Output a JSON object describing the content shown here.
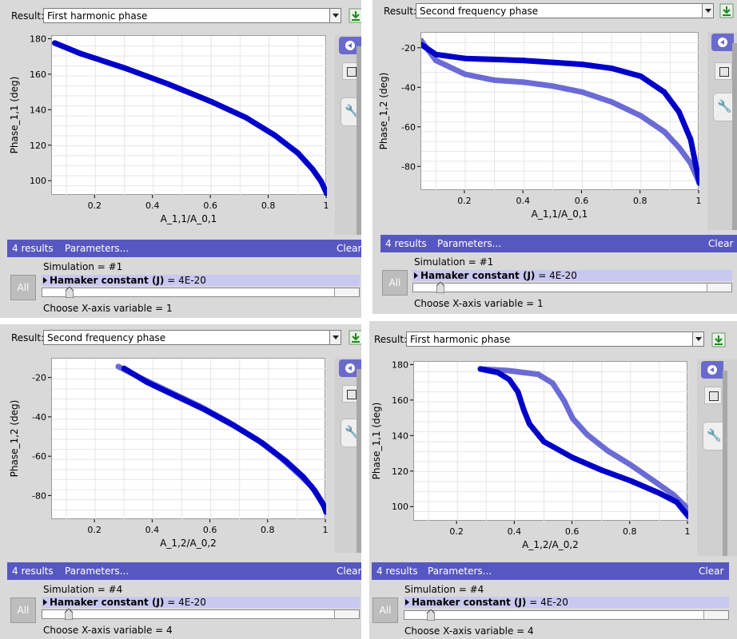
{
  "common": {
    "result_label": "Result:",
    "results_count": "4 results",
    "parameters_label": "Parameters...",
    "clear_label": "Clear",
    "all_label": "All",
    "param_name": "Hamaker constant (J)",
    "param_value": "= 4E-20",
    "colors": {
      "series_dark": "#0000c8",
      "series_light": "#6b6bd6",
      "bar": "#5757c2"
    }
  },
  "panels": [
    {
      "result": "First harmonic phase",
      "simulation": "Simulation = #1",
      "xaxis_choice": "Choose X-axis variable = 1",
      "chart_data": {
        "type": "scatter",
        "xlabel": "A_1,1/A_0,1",
        "ylabel": "Phase_1,1 (deg)",
        "xlim": [
          0.05,
          1.0
        ],
        "ylim": [
          92,
          182
        ],
        "x_ticks": [
          "0.2",
          "0.4",
          "0.6",
          "0.8",
          "1"
        ],
        "y_ticks": [
          "100",
          "120",
          "140",
          "160",
          "180"
        ],
        "series": [
          {
            "style": "dark",
            "x": [
              0.06,
              0.15,
              0.3,
              0.45,
              0.6,
              0.72,
              0.82,
              0.9,
              0.95,
              0.98,
              1.0
            ],
            "y": [
              178,
              172,
              164,
              155,
              145,
              136,
              126,
              116,
              107,
              100,
              93
            ]
          }
        ]
      }
    },
    {
      "result": "Second frequency phase",
      "simulation": "Simulation = #1",
      "xaxis_choice": "Choose X-axis variable = 1",
      "chart_data": {
        "type": "scatter",
        "xlabel": "A_1,1/A_0,1",
        "ylabel": "Phase_1,2 (deg)",
        "xlim": [
          0.05,
          1.0
        ],
        "ylim": [
          -92,
          -12
        ],
        "x_ticks": [
          "0.2",
          "0.4",
          "0.6",
          "0.8",
          "1"
        ],
        "y_ticks": [
          "-20",
          "-40",
          "-60",
          "-80"
        ],
        "series": [
          {
            "style": "dark",
            "x": [
              0.05,
              0.1,
              0.2,
              0.3,
              0.4,
              0.5,
              0.6,
              0.7,
              0.8,
              0.88,
              0.93,
              0.97,
              1.0
            ],
            "y": [
              -18,
              -23,
              -25,
              -25.5,
              -26,
              -27,
              -28,
              -30,
              -34,
              -42,
              -52,
              -66,
              -88
            ]
          },
          {
            "style": "light",
            "x": [
              0.05,
              0.1,
              0.2,
              0.3,
              0.4,
              0.5,
              0.6,
              0.7,
              0.8,
              0.88,
              0.93,
              0.97,
              1.0
            ],
            "y": [
              -16,
              -26,
              -33,
              -36,
              -37,
              -39,
              -42,
              -47,
              -54,
              -62,
              -70,
              -78,
              -88
            ]
          }
        ]
      }
    },
    {
      "result": "Second frequency phase",
      "simulation": "Simulation = #4",
      "xaxis_choice": "Choose X-axis variable = 4",
      "chart_data": {
        "type": "scatter",
        "xlabel": "A_1,2/A_0,2",
        "ylabel": "Phase_1,2 (deg)",
        "xlim": [
          0.05,
          1.0
        ],
        "ylim": [
          -92,
          -10
        ],
        "x_ticks": [
          "0.2",
          "0.4",
          "0.6",
          "0.8",
          "1"
        ],
        "y_ticks": [
          "-20",
          "-40",
          "-60",
          "-80"
        ],
        "series": [
          {
            "style": "dark",
            "x": [
              0.3,
              0.38,
              0.48,
              0.58,
              0.68,
              0.78,
              0.86,
              0.92,
              0.96,
              0.99,
              1.0
            ],
            "y": [
              -15,
              -22,
              -29,
              -36,
              -44,
              -53,
              -62,
              -70,
              -77,
              -84,
              -88
            ]
          },
          {
            "style": "light",
            "x": [
              0.28,
              0.36,
              0.46,
              0.56,
              0.66,
              0.76,
              0.84,
              0.9,
              0.95,
              0.98,
              1.0
            ],
            "y": [
              -14,
              -20,
              -27,
              -34,
              -42,
              -51,
              -60,
              -68,
              -75,
              -82,
              -87
            ]
          }
        ]
      }
    },
    {
      "result": "First harmonic phase",
      "simulation": "Simulation = #4",
      "xaxis_choice": "Choose X-axis variable = 4",
      "chart_data": {
        "type": "scatter",
        "xlabel": "A_1,2/A_0,2",
        "ylabel": "Phase_1,1 (deg)",
        "xlim": [
          0.05,
          1.0
        ],
        "ylim": [
          92,
          182
        ],
        "x_ticks": [
          "0.2",
          "0.4",
          "0.6",
          "0.8",
          "1"
        ],
        "y_ticks": [
          "100",
          "120",
          "140",
          "160",
          "180"
        ],
        "series": [
          {
            "style": "dark",
            "x": [
              0.28,
              0.34,
              0.38,
              0.41,
              0.43,
              0.45,
              0.5,
              0.6,
              0.7,
              0.8,
              0.9,
              0.96,
              1.0
            ],
            "y": [
              178,
              176,
              172,
              165,
              155,
              147,
              137,
              128,
              121,
              115,
              108,
              103,
              95
            ]
          },
          {
            "style": "light",
            "x": [
              0.28,
              0.38,
              0.48,
              0.53,
              0.57,
              0.6,
              0.65,
              0.72,
              0.8,
              0.88,
              0.95,
              1.0
            ],
            "y": [
              178,
              177,
              175,
              170,
              160,
              150,
              141,
              132,
              124,
              115,
              107,
              99
            ]
          }
        ]
      }
    }
  ]
}
